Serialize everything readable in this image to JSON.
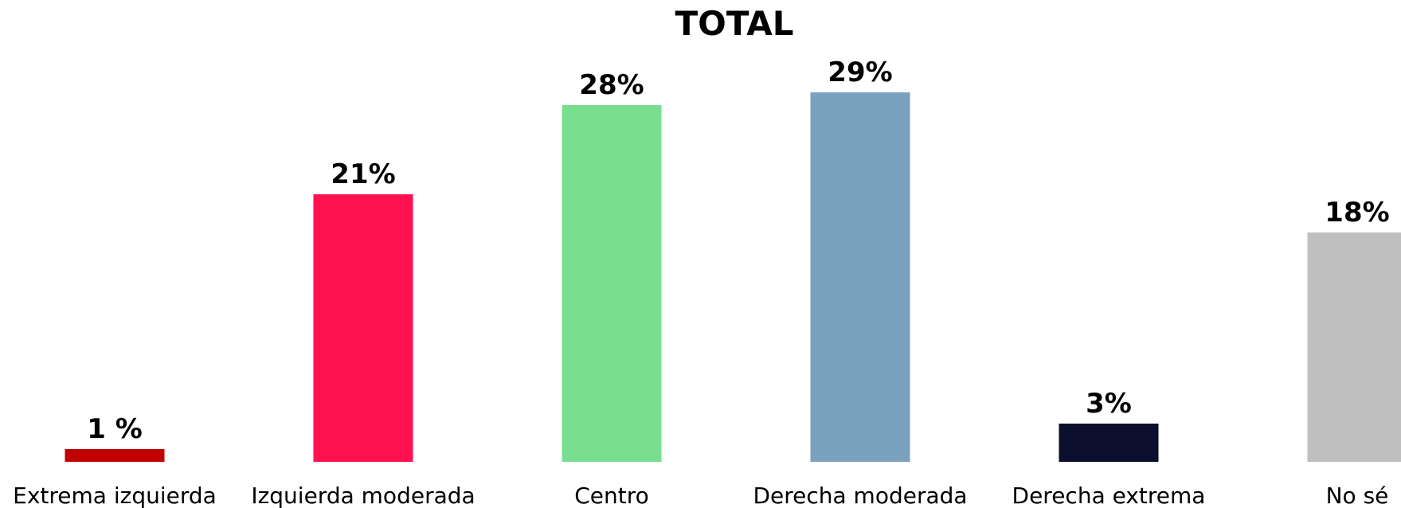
{
  "chart_data": {
    "type": "bar",
    "title": "TOTAL",
    "categories": [
      "Extrema izquierda",
      "Izquierda moderada",
      "Centro",
      "Derecha moderada",
      "Derecha extrema",
      "No sé"
    ],
    "values": [
      1,
      21,
      28,
      29,
      3,
      18
    ],
    "value_labels": [
      "1 %",
      "21%",
      "28%",
      "29%",
      "3%",
      "18%"
    ],
    "colors": [
      "#c00000",
      "#ff1150",
      "#79de8f",
      "#7aa2bf",
      "#0b0f2d",
      "#bfbfbf"
    ]
  }
}
